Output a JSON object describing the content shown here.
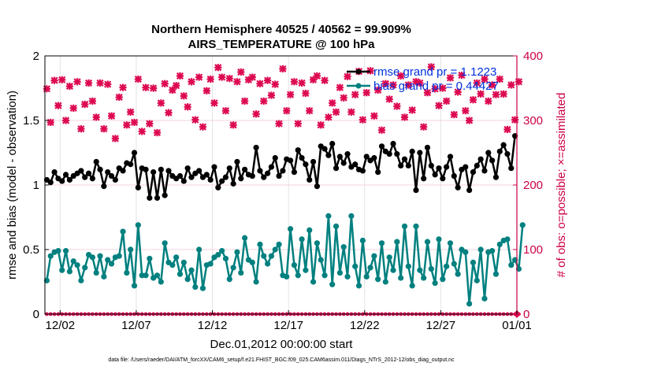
{
  "chart_data": {
    "type": "line",
    "title_line1": "Northern Hemisphere 40525 / 40562 = 99.909%",
    "title_line2": "AIRS_TEMPERATURE @ 100 hPa",
    "xlabel": "Dec.01,2012 00:00:00 start",
    "ylabel_left": "rmse and bias (model - observation)",
    "ylabel_right": "# of obs: o=possible; ×=assimilated",
    "footer": "data file: /Users/raeder/DAI/ATM_forcXX/CAM6_setup/f.e21.FHIST_BGC.f09_025.CAM6assim.011/Diags_NTrS_2012-12/obs_diag_output.nc",
    "xlim": [
      0,
      124
    ],
    "ylim_left": [
      0,
      2
    ],
    "ylim_right": [
      0,
      400
    ],
    "x_ticks": [
      {
        "x": 4,
        "label": "12/02"
      },
      {
        "x": 24,
        "label": "12/07"
      },
      {
        "x": 44,
        "label": "12/12"
      },
      {
        "x": 64,
        "label": "12/17"
      },
      {
        "x": 84,
        "label": "12/22"
      },
      {
        "x": 104,
        "label": "12/27"
      },
      {
        "x": 124,
        "label": "01/01"
      }
    ],
    "y_ticks_left": [
      {
        "v": 0,
        "label": "0"
      },
      {
        "v": 0.5,
        "label": "0.5"
      },
      {
        "v": 1,
        "label": "1"
      },
      {
        "v": 1.5,
        "label": "1.5"
      },
      {
        "v": 2,
        "label": "2"
      }
    ],
    "y_ticks_right": [
      {
        "v": 0,
        "label": "0"
      },
      {
        "v": 100,
        "label": "100"
      },
      {
        "v": 200,
        "label": "200"
      },
      {
        "v": 300,
        "label": "300"
      },
      {
        "v": 400,
        "label": "400"
      }
    ],
    "grid": true,
    "legend_position": "top-right",
    "colors": {
      "rmse": "#000000",
      "bias": "#00807f",
      "obs": "#dd0a50",
      "legend_text": "#0033dd",
      "right_axis": "#cc0044"
    },
    "series": [
      {
        "name": "rmse grand pr = 1.1223",
        "key": "rmse",
        "axis": "left",
        "marker": "dot",
        "values": [
          1.04,
          1.02,
          1.1,
          1.05,
          1.03,
          1.08,
          1.04,
          1.07,
          1.09,
          1.11,
          1.06,
          1.09,
          1.05,
          1.18,
          1.12,
          0.99,
          1.1,
          1.07,
          1.04,
          1.13,
          1.11,
          1.17,
          1.16,
          1.25,
          0.98,
          1.13,
          1.12,
          0.9,
          1.1,
          0.9,
          1.12,
          0.92,
          1.11,
          1.07,
          1.05,
          1.07,
          1.03,
          1.13,
          1.06,
          1.09,
          1.11,
          1.06,
          1.08,
          1.04,
          1.14,
          0.98,
          1.03,
          1.06,
          1.13,
          1.01,
          1.18,
          1.05,
          1.12,
          1.08,
          1.07,
          1.29,
          1.11,
          1.06,
          1.09,
          1.14,
          1.21,
          1.07,
          1.11,
          1.2,
          1.19,
          1.1,
          1.27,
          1.21,
          1.16,
          1.04,
          1.18,
          0.99,
          1.3,
          1.28,
          1.23,
          1.32,
          1.13,
          1.22,
          1.17,
          1.24,
          1.14,
          1.16,
          1.12,
          1.11,
          1.22,
          1.19,
          1.21,
          1.1,
          1.3,
          1.26,
          1.24,
          1.32,
          1.24,
          1.15,
          1.2,
          1.15,
          1.26,
          0.96,
          1.25,
          1.05,
          1.29,
          1.15,
          1.08,
          1.13,
          1.05,
          1.14,
          1.22,
          1.07,
          0.98,
          1.12,
          1.14,
          0.96,
          1.1,
          1.15,
          1.2,
          1.11,
          1.25,
          1.19,
          1.06,
          1.26,
          1.31,
          1.24,
          1.13,
          1.38
        ]
      },
      {
        "name": "bias grand pr = 0.44427",
        "key": "bias",
        "axis": "left",
        "marker": "dot",
        "values": [
          0.26,
          0.45,
          0.48,
          0.49,
          0.34,
          0.49,
          0.33,
          0.41,
          0.38,
          0.26,
          0.36,
          0.46,
          0.44,
          0.32,
          0.45,
          0.29,
          0.42,
          0.39,
          0.44,
          0.45,
          0.64,
          0.32,
          0.5,
          0.22,
          0.69,
          0.3,
          0.3,
          0.43,
          0.28,
          0.3,
          0.25,
          0.55,
          0.4,
          0.38,
          0.44,
          0.31,
          0.4,
          0.27,
          0.34,
          0.21,
          0.5,
          0.2,
          0.38,
          0.39,
          0.44,
          0.46,
          0.49,
          0.43,
          0.27,
          0.36,
          0.48,
          0.32,
          0.59,
          0.42,
          0.4,
          0.25,
          0.54,
          0.45,
          0.39,
          0.45,
          0.5,
          0.54,
          0.3,
          0.29,
          0.66,
          0.38,
          0.3,
          0.58,
          0.34,
          0.65,
          0.25,
          0.55,
          0.42,
          0.3,
          0.76,
          0.23,
          0.68,
          0.32,
          0.52,
          0.29,
          0.76,
          0.37,
          0.22,
          0.57,
          0.29,
          0.36,
          0.45,
          0.27,
          0.55,
          0.25,
          0.44,
          0.34,
          0.56,
          0.28,
          0.68,
          0.37,
          0.22,
          0.68,
          0.34,
          0.28,
          0.56,
          0.35,
          0.24,
          0.58,
          0.27,
          0.37,
          0.55,
          0.39,
          0.31,
          0.5,
          0.48,
          0.08,
          0.4,
          0.26,
          0.5,
          0.12,
          0.48,
          0.49,
          0.31,
          0.54,
          0.57,
          0.58,
          0.38,
          0.42,
          0.35,
          0.69
        ]
      },
      {
        "name": "obs possible",
        "key": "obs_possible",
        "axis": "right",
        "marker": "circle",
        "values": [
          0,
          0,
          0,
          0,
          0,
          0,
          0,
          0,
          0,
          0,
          0,
          0,
          0,
          0,
          0,
          0,
          0,
          0,
          0,
          0,
          0,
          0,
          0,
          0,
          0,
          0,
          0,
          0,
          0,
          0,
          0,
          0,
          0,
          0,
          0,
          0,
          0,
          0,
          0,
          0,
          0,
          0,
          0,
          0,
          0,
          0,
          0,
          0,
          0,
          0,
          0,
          0,
          0,
          0,
          0,
          0,
          0,
          0,
          0,
          0,
          0,
          0,
          0,
          0,
          0,
          0,
          0,
          0,
          0,
          0,
          0,
          0,
          0,
          0,
          0,
          0,
          0,
          0,
          0,
          0,
          0,
          0,
          0,
          0,
          0,
          0,
          0,
          0,
          0,
          0,
          0,
          0,
          0,
          0,
          0,
          0,
          0,
          0,
          0,
          0,
          0,
          0,
          0,
          0,
          0,
          0,
          0,
          0,
          0,
          0,
          0,
          0,
          0,
          0,
          0,
          0,
          0,
          0,
          0,
          0,
          0,
          0,
          0,
          0,
          0
        ]
      },
      {
        "name": "obs assimilated",
        "key": "obs_assim",
        "axis": "right",
        "marker": "cross",
        "values": [
          349,
          297,
          362,
          323,
          363,
          300,
          353,
          319,
          360,
          287,
          325,
          358,
          330,
          305,
          358,
          287,
          356,
          307,
          272,
          336,
          351,
          293,
          313,
          297,
          364,
          283,
          351,
          295,
          350,
          281,
          327,
          357,
          312,
          347,
          354,
          369,
          338,
          321,
          360,
          301,
          367,
          290,
          346,
          364,
          327,
          382,
          367,
          315,
          365,
          293,
          360,
          375,
          330,
          363,
          367,
          310,
          357,
          330,
          362,
          339,
          356,
          295,
          380,
          315,
          340,
          360,
          295,
          358,
          342,
          315,
          363,
          369,
          293,
          362,
          305,
          327,
          313,
          351,
          335,
          368,
          313,
          340,
          376,
          301,
          343,
          377,
          307,
          347,
          285,
          357,
          333,
          355,
          322,
          369,
          305,
          355,
          316,
          360,
          358,
          290,
          343,
          383,
          349,
          323,
          350,
          330,
          366,
          309,
          344,
          370,
          315,
          300,
          332,
          358,
          341,
          364,
          330,
          355,
          340,
          364,
          341,
          286,
          355,
          301,
          360
        ]
      }
    ]
  }
}
